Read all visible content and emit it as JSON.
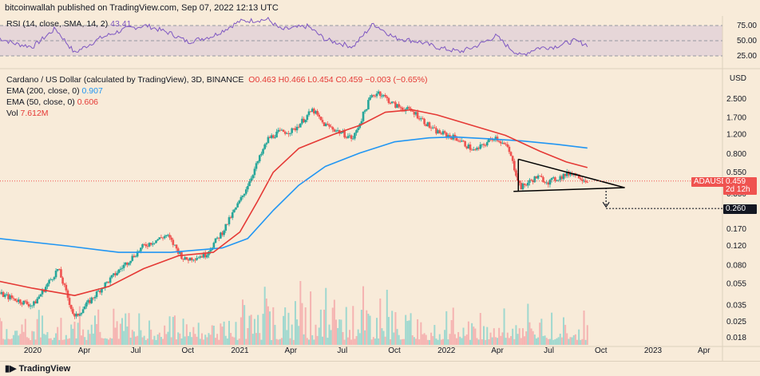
{
  "header": {
    "published": "bitcoinwallah published on TradingView.com, Sep 07, 2022 12:13 UTC"
  },
  "rsi_legend": {
    "label": "RSI (14, close, SMA, 14, 2)",
    "value": "43.41"
  },
  "legend": {
    "symbol": "Cardano / US Dollar (calculated by TradingView), 3D, BINANCE",
    "ohlc": "O0.463  H0.466  L0.454  C0.459  −0.003 (−0.65%)",
    "ema200_label": "EMA (200, close, 0)",
    "ema200_value": "0.907",
    "ema50_label": "EMA (50, close, 0)",
    "ema50_value": "0.606",
    "vol_label": "Vol",
    "vol_value": "7.612M"
  },
  "price_tags": {
    "ticker": "ADAUSD",
    "price": "0.459",
    "countdown": "2d 12h",
    "target": "0.260"
  },
  "footer": {
    "brand": "TradingView"
  },
  "colors": {
    "background": "#f8ebd9",
    "up": "#26a69a",
    "down": "#ef5350",
    "ema200": "#2196f3",
    "ema50": "#e53935",
    "rsi": "#7e57c2",
    "wedge": "#000000"
  },
  "chart_data": {
    "type": "candlestick",
    "scale": "log",
    "ylabel": "USD",
    "price_ticks": [
      "2.500",
      "1.700",
      "1.200",
      "0.800",
      "0.550",
      "0.350",
      "0.260",
      "0.170",
      "0.120",
      "0.080",
      "0.055",
      "0.035",
      "0.025",
      "0.018"
    ],
    "price_tick_values": [
      2.5,
      1.7,
      1.2,
      0.8,
      0.55,
      0.35,
      0.26,
      0.17,
      0.12,
      0.08,
      0.055,
      0.035,
      0.025,
      0.018
    ],
    "rsi_ticks": [
      "75.00",
      "50.00",
      "25.00"
    ],
    "rsi_tick_values": [
      75,
      50,
      25
    ],
    "x_ticks": [
      "2020",
      "Apr",
      "Jul",
      "Oct",
      "2021",
      "Apr",
      "Jul",
      "Oct",
      "2022",
      "Apr",
      "Jul",
      "Oct",
      "2023",
      "Apr"
    ],
    "x_tick_dates": [
      "2020-01-01",
      "2020-04-01",
      "2020-07-01",
      "2020-10-01",
      "2021-01-01",
      "2021-04-01",
      "2021-07-01",
      "2021-10-01",
      "2022-01-01",
      "2022-04-01",
      "2022-07-01",
      "2022-10-01",
      "2023-01-01",
      "2023-04-01"
    ],
    "price_keypoints": [
      [
        "2019-11-01",
        0.045
      ],
      [
        "2020-01-01",
        0.035
      ],
      [
        "2020-02-15",
        0.075
      ],
      [
        "2020-03-15",
        0.027
      ],
      [
        "2020-05-01",
        0.05
      ],
      [
        "2020-06-15",
        0.085
      ],
      [
        "2020-07-15",
        0.12
      ],
      [
        "2020-08-25",
        0.15
      ],
      [
        "2020-09-25",
        0.09
      ],
      [
        "2020-11-01",
        0.1
      ],
      [
        "2020-12-01",
        0.16
      ],
      [
        "2021-01-05",
        0.33
      ],
      [
        "2021-02-20",
        1.1
      ],
      [
        "2021-03-10",
        1.25
      ],
      [
        "2021-04-05",
        1.3
      ],
      [
        "2021-05-10",
        2.0
      ],
      [
        "2021-05-28",
        1.5
      ],
      [
        "2021-07-20",
        1.1
      ],
      [
        "2021-08-20",
        2.6
      ],
      [
        "2021-09-03",
        2.9
      ],
      [
        "2021-10-01",
        2.2
      ],
      [
        "2021-11-05",
        1.9
      ],
      [
        "2021-12-10",
        1.3
      ],
      [
        "2022-01-20",
        1.1
      ],
      [
        "2022-02-20",
        0.85
      ],
      [
        "2022-03-28",
        1.15
      ],
      [
        "2022-04-20",
        0.9
      ],
      [
        "2022-05-12",
        0.4
      ],
      [
        "2022-06-10",
        0.5
      ],
      [
        "2022-07-01",
        0.45
      ],
      [
        "2022-08-10",
        0.55
      ],
      [
        "2022-09-07",
        0.459
      ]
    ],
    "ema200_keypoints": [
      [
        "2019-11-01",
        0.14
      ],
      [
        "2020-03-01",
        0.12
      ],
      [
        "2020-06-01",
        0.105
      ],
      [
        "2020-09-01",
        0.105
      ],
      [
        "2020-12-01",
        0.115
      ],
      [
        "2021-01-15",
        0.14
      ],
      [
        "2021-03-01",
        0.25
      ],
      [
        "2021-04-15",
        0.42
      ],
      [
        "2021-06-01",
        0.62
      ],
      [
        "2021-08-01",
        0.82
      ],
      [
        "2021-10-01",
        1.03
      ],
      [
        "2021-12-01",
        1.12
      ],
      [
        "2022-01-15",
        1.14
      ],
      [
        "2022-03-15",
        1.1
      ],
      [
        "2022-05-15",
        1.05
      ],
      [
        "2022-07-15",
        0.98
      ],
      [
        "2022-09-07",
        0.907
      ]
    ],
    "ema50_keypoints": [
      [
        "2019-11-01",
        0.058
      ],
      [
        "2020-01-01",
        0.05
      ],
      [
        "2020-03-15",
        0.043
      ],
      [
        "2020-05-15",
        0.052
      ],
      [
        "2020-07-15",
        0.075
      ],
      [
        "2020-09-15",
        0.098
      ],
      [
        "2020-11-15",
        0.105
      ],
      [
        "2021-01-01",
        0.16
      ],
      [
        "2021-02-01",
        0.3
      ],
      [
        "2021-03-01",
        0.55
      ],
      [
        "2021-04-15",
        0.9
      ],
      [
        "2021-06-15",
        1.2
      ],
      [
        "2021-08-01",
        1.45
      ],
      [
        "2021-09-15",
        1.9
      ],
      [
        "2021-11-01",
        2.0
      ],
      [
        "2021-12-15",
        1.8
      ],
      [
        "2022-02-15",
        1.45
      ],
      [
        "2022-04-15",
        1.18
      ],
      [
        "2022-06-15",
        0.85
      ],
      [
        "2022-08-01",
        0.68
      ],
      [
        "2022-09-07",
        0.606
      ]
    ],
    "rsi_keypoints": [
      [
        "2019-11-01",
        55
      ],
      [
        "2019-12-01",
        45
      ],
      [
        "2020-01-01",
        40
      ],
      [
        "2020-02-10",
        70
      ],
      [
        "2020-03-15",
        30
      ],
      [
        "2020-05-01",
        55
      ],
      [
        "2020-06-15",
        70
      ],
      [
        "2020-07-20",
        75
      ],
      [
        "2020-09-01",
        62
      ],
      [
        "2020-10-01",
        48
      ],
      [
        "2020-11-15",
        58
      ],
      [
        "2021-01-01",
        82
      ],
      [
        "2021-02-20",
        85
      ],
      [
        "2021-03-15",
        68
      ],
      [
        "2021-05-01",
        74
      ],
      [
        "2021-06-01",
        52
      ],
      [
        "2021-07-20",
        40
      ],
      [
        "2021-08-25",
        78
      ],
      [
        "2021-10-01",
        55
      ],
      [
        "2021-11-15",
        48
      ],
      [
        "2021-12-20",
        38
      ],
      [
        "2022-01-25",
        32
      ],
      [
        "2022-02-20",
        40
      ],
      [
        "2022-03-30",
        58
      ],
      [
        "2022-04-20",
        40
      ],
      [
        "2022-05-12",
        25
      ],
      [
        "2022-06-10",
        38
      ],
      [
        "2022-07-10",
        40
      ],
      [
        "2022-08-15",
        50
      ],
      [
        "2022-09-07",
        43.41
      ]
    ],
    "triangle": {
      "upper": [
        [
          "2022-05-08",
          0.72
        ],
        [
          "2022-11-12",
          0.4
        ]
      ],
      "lower": [
        [
          "2022-05-08",
          0.37
        ],
        [
          "2022-11-12",
          0.4
        ]
      ],
      "apex": [
        "2022-11-12",
        0.4
      ]
    },
    "projection": {
      "from": [
        "2022-10-10",
        0.4
      ],
      "to": [
        "2022-10-20",
        0.26
      ],
      "target": 0.26
    }
  }
}
